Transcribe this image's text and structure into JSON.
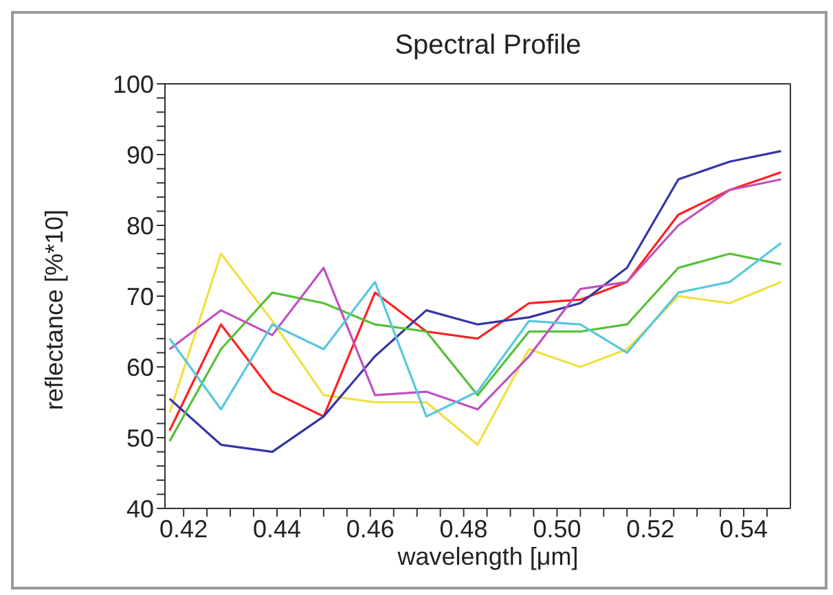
{
  "chart_data": {
    "type": "line",
    "title": "Spectral Profile",
    "xlabel": "wavelength [μm]",
    "ylabel": "reflectance [%*10]",
    "x": [
      0.417,
      0.428,
      0.439,
      0.45,
      0.461,
      0.472,
      0.483,
      0.494,
      0.505,
      0.515,
      0.526,
      0.537,
      0.548
    ],
    "series": [
      {
        "color": "#f0e040",
        "values": [
          53.5,
          76,
          66.5,
          56,
          55,
          55,
          49,
          62.5,
          60,
          62.5,
          70,
          69,
          72
        ]
      },
      {
        "color": "#ff2020",
        "values": [
          51,
          66,
          56.5,
          53,
          70.5,
          65,
          64,
          69,
          69.5,
          72,
          81.5,
          85,
          87.5
        ]
      },
      {
        "color": "#3535a5",
        "values": [
          55.5,
          49,
          48,
          53,
          61.5,
          68,
          66,
          67,
          69,
          74,
          86.5,
          89,
          90.5
        ]
      },
      {
        "color": "#55c035",
        "values": [
          49.5,
          62.5,
          70.5,
          69,
          66,
          65,
          56,
          65,
          65,
          66,
          74,
          76,
          74.5
        ]
      },
      {
        "color": "#c050c0",
        "values": [
          62.5,
          68,
          64.5,
          74,
          56,
          56.5,
          54,
          61.5,
          71,
          72,
          80,
          85,
          86.5
        ]
      },
      {
        "color": "#55c8dc",
        "values": [
          64,
          54,
          66,
          62.5,
          72,
          53,
          56.5,
          66.5,
          66,
          62,
          70.5,
          72,
          77.5
        ]
      }
    ],
    "xlim": [
      0.416,
      0.55
    ],
    "xticks": [
      0.42,
      {
        "value": 0.425,
        "label": null
      },
      {
        "value": 0.43,
        "label": null
      },
      {
        "value": 0.435,
        "label": null
      },
      0.44,
      {
        "value": 0.445,
        "label": null
      },
      {
        "value": 0.45,
        "label": null
      },
      {
        "value": 0.455,
        "label": null
      },
      0.46,
      {
        "value": 0.465,
        "label": null
      },
      {
        "value": 0.47,
        "label": null
      },
      {
        "value": 0.475,
        "label": null
      },
      0.48,
      {
        "value": 0.485,
        "label": null
      },
      {
        "value": 0.49,
        "label": null
      },
      {
        "value": 0.495,
        "label": null
      },
      {
        "value": 0.5,
        "label": "0.50"
      },
      {
        "value": 0.505,
        "label": null
      },
      {
        "value": 0.51,
        "label": null
      },
      {
        "value": 0.515,
        "label": null
      },
      0.52,
      {
        "value": 0.525,
        "label": null
      },
      {
        "value": 0.53,
        "label": null
      },
      {
        "value": 0.535,
        "label": null
      },
      0.54,
      {
        "value": 0.545,
        "label": null
      }
    ],
    "ylim": [
      40,
      100
    ],
    "yticks": [
      40,
      {
        "value": 42,
        "label": null
      },
      {
        "value": 44,
        "label": null
      },
      {
        "value": 46,
        "label": null
      },
      {
        "value": 48,
        "label": null
      },
      50,
      {
        "value": 52,
        "label": null
      },
      {
        "value": 54,
        "label": null
      },
      {
        "value": 56,
        "label": null
      },
      {
        "value": 58,
        "label": null
      },
      60,
      {
        "value": 62,
        "label": null
      },
      {
        "value": 64,
        "label": null
      },
      {
        "value": 66,
        "label": null
      },
      {
        "value": 68,
        "label": null
      },
      70,
      {
        "value": 72,
        "label": null
      },
      {
        "value": 74,
        "label": null
      },
      {
        "value": 76,
        "label": null
      },
      {
        "value": 78,
        "label": null
      },
      80,
      {
        "value": 82,
        "label": null
      },
      {
        "value": 84,
        "label": null
      },
      {
        "value": 86,
        "label": null
      },
      {
        "value": 88,
        "label": null
      },
      90,
      {
        "value": 92,
        "label": null
      },
      {
        "value": 94,
        "label": null
      },
      {
        "value": 96,
        "label": null
      },
      {
        "value": 98,
        "label": null
      },
      100
    ],
    "marker": "none",
    "line_style": "solid"
  }
}
